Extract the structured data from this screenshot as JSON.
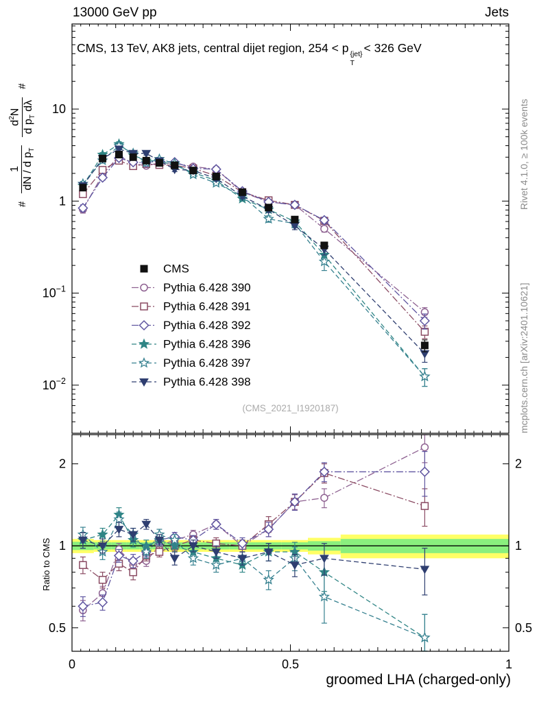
{
  "header": {
    "left": "13000 GeV pp",
    "right": "Jets"
  },
  "panel_title": {
    "prefix": "CMS, 13 TeV, AK8 jets, central dijet region, 254 < p",
    "sup": "{jet}",
    "sub": "T",
    "suffix": "< 326 GeV"
  },
  "ylabel": {
    "hash1": "#",
    "num1": "1",
    "den1_a": "dN / d p",
    "den1_sub": "T",
    "num2_a": "d",
    "num2_sup": "2",
    "num2_b": "N",
    "den2_a": "d p",
    "den2_sub": "T",
    "den2_b": " dλ",
    "hash2": "#"
  },
  "ratio_ylabel": "Ratio to CMS",
  "xlabel": "groomed LHA (charged-only)",
  "watermark": "(CMS_2021_I1920187)",
  "side_notes": {
    "top_right": "Rivet 4.1.0, ≥ 100k events",
    "bottom_right": "mcplots.cern.ch [arXiv:2401.10621]"
  },
  "axis": {
    "x_tick_labels": [
      {
        "v": 0,
        "t": "0"
      },
      {
        "v": 0.5,
        "t": "0.5"
      },
      {
        "v": 1,
        "t": "1"
      }
    ],
    "y_tick_labels": [
      {
        "v": 10,
        "base": "10"
      },
      {
        "v": 1,
        "base": "1"
      },
      {
        "v": 0.1,
        "base": "10",
        "exp": "−1"
      },
      {
        "v": 0.01,
        "base": "10",
        "exp": "−2"
      }
    ],
    "ratio_tick_labels": [
      {
        "v": 2,
        "t": "2"
      },
      {
        "v": 1,
        "t": "1"
      },
      {
        "v": 0.5,
        "t": "0.5"
      }
    ]
  },
  "chart_data": {
    "type": "scatter",
    "panels": [
      "distribution",
      "ratio-to-cms"
    ],
    "xlim": [
      0,
      1
    ],
    "ylim_main": [
      0.003,
      84
    ],
    "ylim_ratio": [
      0.41,
      2.56
    ],
    "main_yscale": "log",
    "ratio_yscale": "log",
    "legend_position": "middle-left",
    "x": [
      0.025,
      0.07,
      0.1075,
      0.14,
      0.17,
      0.2,
      0.235,
      0.2775,
      0.33,
      0.39,
      0.45,
      0.51,
      0.5775,
      0.8075
    ],
    "bin_edges": [
      0.0,
      0.05,
      0.09,
      0.125,
      0.155,
      0.185,
      0.215,
      0.255,
      0.3,
      0.36,
      0.42,
      0.48,
      0.54,
      0.615,
      1.0
    ],
    "cms": {
      "name": "CMS",
      "color": "#111111",
      "marker": "square-filled",
      "values": [
        1.4,
        2.9,
        3.2,
        3.0,
        2.75,
        2.6,
        2.45,
        2.15,
        1.85,
        1.25,
        0.85,
        0.63,
        0.33,
        0.027
      ],
      "errors": [
        0.09,
        0.15,
        0.16,
        0.15,
        0.13,
        0.12,
        0.11,
        0.1,
        0.08,
        0.06,
        0.05,
        0.04,
        0.025,
        0.004
      ]
    },
    "series": [
      {
        "name": "Pythia 6.428 390",
        "color": "#8e6191",
        "line": "dashdot",
        "marker": "circle-open",
        "values": [
          0.81,
          1.94,
          3.1,
          2.55,
          2.42,
          2.6,
          2.57,
          2.37,
          2.22,
          1.25,
          0.98,
          0.91,
          0.5,
          0.062
        ],
        "ratio": [
          0.58,
          0.67,
          0.97,
          0.85,
          0.88,
          1.0,
          1.05,
          1.1,
          1.2,
          1.0,
          1.15,
          1.45,
          1.5,
          2.3
        ],
        "ratio_err": [
          0.05,
          0.04,
          0.05,
          0.05,
          0.04,
          0.04,
          0.04,
          0.04,
          0.05,
          0.05,
          0.07,
          0.09,
          0.12,
          0.28
        ]
      },
      {
        "name": "Pythia 6.428 391",
        "color": "#8a4a62",
        "line": "dashdot",
        "marker": "square-open",
        "values": [
          1.19,
          2.18,
          2.75,
          2.4,
          2.53,
          2.47,
          2.45,
          2.26,
          1.89,
          1.25,
          1.02,
          0.91,
          0.61,
          0.038
        ],
        "ratio": [
          0.85,
          0.75,
          0.86,
          0.8,
          0.92,
          0.95,
          1.0,
          1.05,
          1.02,
          1.0,
          1.2,
          1.45,
          1.85,
          1.4
        ],
        "ratio_err": [
          0.06,
          0.05,
          0.05,
          0.05,
          0.04,
          0.04,
          0.04,
          0.04,
          0.05,
          0.05,
          0.08,
          0.1,
          0.15,
          0.22
        ]
      },
      {
        "name": "Pythia 6.428 392",
        "color": "#5f55a0",
        "line": "dashdot",
        "marker": "diamond-open",
        "values": [
          0.84,
          1.8,
          2.94,
          2.64,
          2.61,
          2.73,
          2.65,
          2.26,
          2.22,
          1.28,
          0.98,
          0.91,
          0.62,
          0.05
        ],
        "ratio": [
          0.6,
          0.62,
          0.92,
          0.88,
          0.95,
          1.05,
          1.08,
          1.05,
          1.2,
          1.02,
          1.15,
          1.45,
          1.87,
          1.87
        ],
        "ratio_err": [
          0.05,
          0.04,
          0.05,
          0.05,
          0.04,
          0.04,
          0.04,
          0.04,
          0.05,
          0.05,
          0.07,
          0.1,
          0.15,
          0.35
        ]
      },
      {
        "name": "Pythia 6.428 396",
        "color": "#2f8585",
        "line": "dashed",
        "marker": "star-filled",
        "values": [
          1.47,
          3.19,
          4.16,
          3.15,
          2.75,
          2.73,
          2.45,
          2.04,
          1.67,
          1.06,
          0.81,
          0.6,
          0.26,
          0.0124
        ],
        "ratio": [
          1.05,
          1.1,
          1.3,
          1.05,
          1.0,
          1.05,
          1.0,
          0.95,
          0.9,
          0.85,
          0.95,
          0.95,
          0.8,
          0.46
        ],
        "ratio_err": [
          0.07,
          0.06,
          0.08,
          0.06,
          0.05,
          0.05,
          0.05,
          0.05,
          0.05,
          0.05,
          0.07,
          0.08,
          0.12,
          0.1
        ]
      },
      {
        "name": "Pythia 6.428 397",
        "color": "#35808f",
        "line": "dashed",
        "marker": "star-open",
        "values": [
          1.54,
          2.76,
          4.0,
          3.3,
          2.61,
          2.86,
          2.57,
          1.94,
          1.57,
          1.13,
          0.64,
          0.57,
          0.22,
          0.0124
        ],
        "ratio": [
          1.1,
          0.95,
          1.25,
          1.1,
          0.95,
          1.1,
          1.05,
          0.9,
          0.85,
          0.9,
          0.75,
          0.9,
          0.65,
          0.46
        ],
        "ratio_err": [
          0.07,
          0.06,
          0.08,
          0.06,
          0.05,
          0.05,
          0.05,
          0.05,
          0.05,
          0.05,
          0.06,
          0.09,
          0.13,
          0.1
        ]
      },
      {
        "name": "Pythia 6.428 398",
        "color": "#2e3e70",
        "line": "dashed",
        "marker": "tri-down-filled",
        "values": [
          1.47,
          2.9,
          3.68,
          3.3,
          3.3,
          2.73,
          2.21,
          2.15,
          1.76,
          1.13,
          0.81,
          0.54,
          0.3,
          0.022
        ],
        "ratio": [
          1.05,
          1.0,
          1.15,
          1.1,
          1.2,
          1.05,
          0.9,
          1.0,
          0.95,
          0.9,
          0.95,
          0.85,
          0.9,
          0.82
        ],
        "ratio_err": [
          0.07,
          0.06,
          0.07,
          0.06,
          0.05,
          0.05,
          0.05,
          0.05,
          0.05,
          0.05,
          0.07,
          0.08,
          0.12,
          0.16
        ]
      }
    ],
    "band": {
      "center": 1.0,
      "yellow_color": "#ffff66",
      "green_color": "#8aef7e",
      "yellow_half": [
        0.06,
        0.05,
        0.05,
        0.05,
        0.05,
        0.05,
        0.05,
        0.05,
        0.05,
        0.05,
        0.05,
        0.05,
        0.07,
        0.1
      ],
      "green_half": [
        0.035,
        0.03,
        0.03,
        0.03,
        0.03,
        0.03,
        0.03,
        0.03,
        0.03,
        0.03,
        0.03,
        0.03,
        0.04,
        0.06
      ]
    }
  }
}
